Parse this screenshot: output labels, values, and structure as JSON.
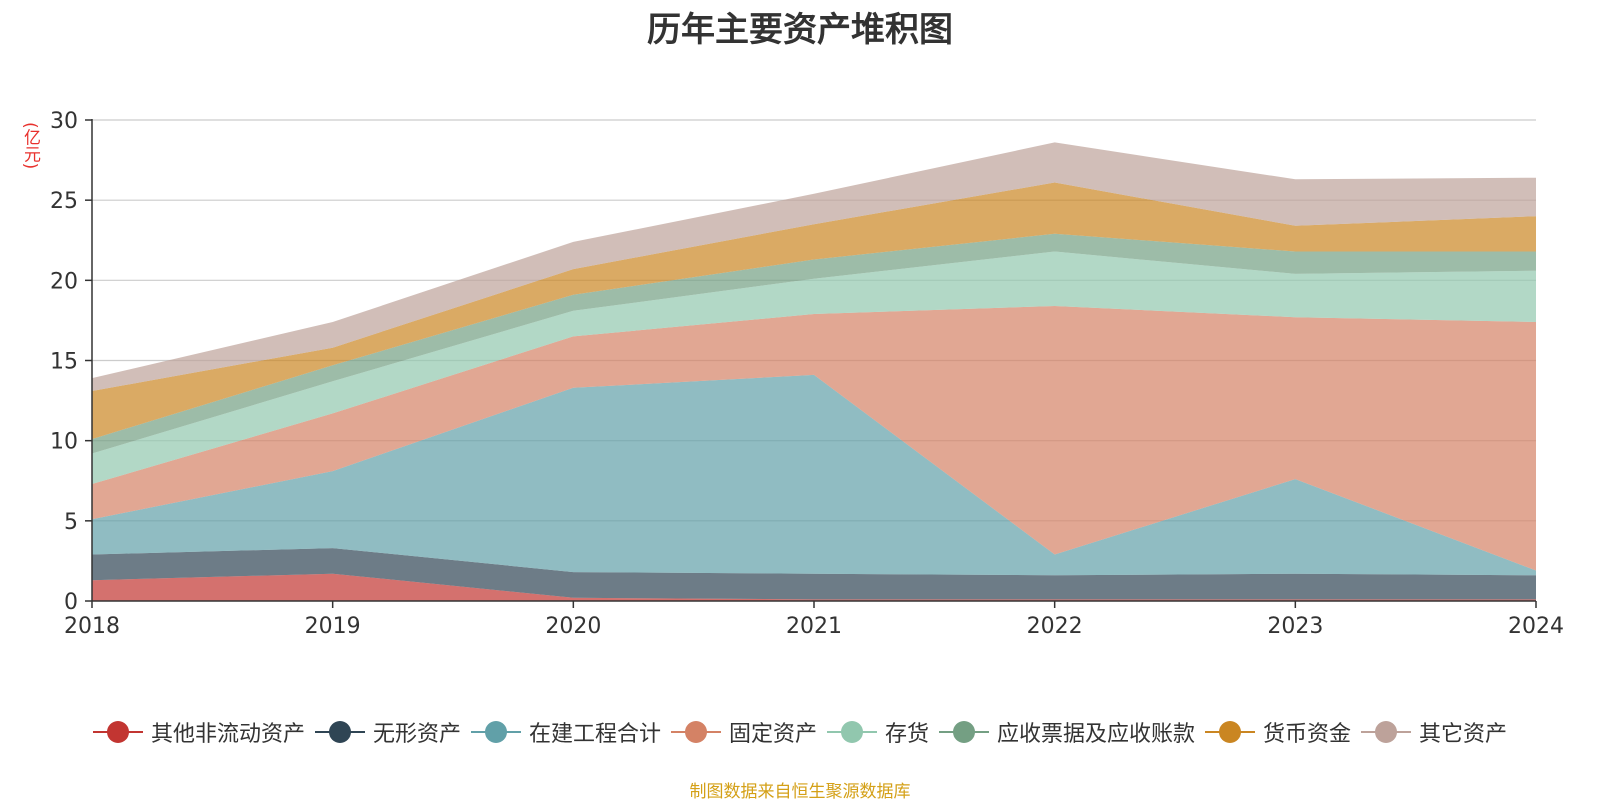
{
  "source_note": "制图数据来自恒生聚源数据库",
  "chart_data": {
    "type": "area",
    "stacked": true,
    "title": "历年主要资产堆积图",
    "ylabel": "(亿元)",
    "xlabel": "",
    "x": [
      "2018",
      "2019",
      "2020",
      "2021",
      "2022",
      "2023",
      "2024"
    ],
    "ylim": [
      0,
      30
    ],
    "yticks": [
      "0",
      "5",
      "10",
      "15",
      "20",
      "25",
      "30"
    ],
    "grid": true,
    "legend_position": "bottom",
    "series": [
      {
        "name": "其他非流动资产",
        "color": "#c23531",
        "values": [
          1.3,
          1.7,
          0.2,
          0.1,
          0.1,
          0.1,
          0.1
        ]
      },
      {
        "name": "无形资产",
        "color": "#2f4554",
        "values": [
          1.6,
          1.6,
          1.6,
          1.6,
          1.5,
          1.6,
          1.5
        ]
      },
      {
        "name": "在建工程合计",
        "color": "#61a0a8",
        "values": [
          2.2,
          4.8,
          11.5,
          12.4,
          1.3,
          5.9,
          0.3
        ]
      },
      {
        "name": "固定资产",
        "color": "#d48265",
        "values": [
          2.2,
          3.6,
          3.2,
          3.8,
          15.5,
          10.1,
          15.5
        ]
      },
      {
        "name": "存货",
        "color": "#91c7ae",
        "values": [
          1.9,
          2.0,
          1.6,
          2.2,
          3.4,
          2.7,
          3.2
        ]
      },
      {
        "name": "应收票据及应收账款",
        "color": "#749f83",
        "values": [
          0.9,
          1.0,
          1.0,
          1.2,
          1.1,
          1.4,
          1.2
        ]
      },
      {
        "name": "货币资金",
        "color": "#ca8622",
        "values": [
          3.0,
          1.1,
          1.6,
          2.2,
          3.2,
          1.6,
          2.2
        ]
      },
      {
        "name": "其它资产",
        "color": "#bda29a",
        "values": [
          0.8,
          1.6,
          1.7,
          1.9,
          2.5,
          2.9,
          2.4
        ]
      }
    ]
  }
}
